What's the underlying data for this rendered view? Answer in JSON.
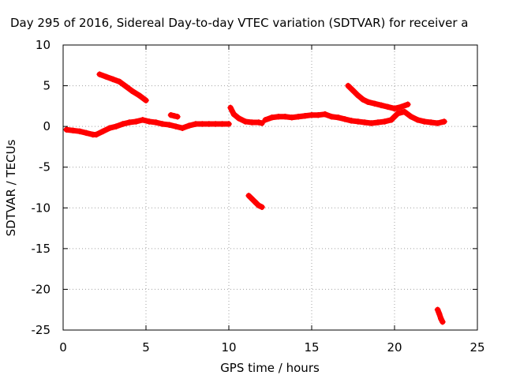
{
  "chart_data": {
    "type": "scatter",
    "title": "Day 295 of 2016, Sidereal Day-to-day VTEC variation (SDTVAR) for receiver a",
    "xlabel": "GPS time / hours",
    "ylabel": "SDTVAR / TECUs",
    "xlim": [
      0,
      25
    ],
    "ylim": [
      -25,
      10
    ],
    "xticks": [
      "0",
      "5",
      "10",
      "15",
      "20",
      "25"
    ],
    "yticks": [
      "10",
      "5",
      "0",
      "-5",
      "-10",
      "-15",
      "-20",
      "-25"
    ],
    "grid": true,
    "marker": "plus",
    "color": "#ff0000",
    "series": [
      {
        "x": [
          0.2,
          0.6,
          1.0,
          1.4,
          1.8,
          2.0,
          2.4,
          2.8,
          3.2,
          3.6,
          4.0,
          4.4,
          4.8,
          5.2,
          5.6,
          6.0,
          6.4,
          6.8,
          7.2,
          7.6,
          8.0,
          8.4,
          8.8,
          9.2,
          9.6,
          10.0
        ],
        "y": [
          -0.4,
          -0.5,
          -0.6,
          -0.8,
          -1.0,
          -1.0,
          -0.6,
          -0.2,
          0.0,
          0.3,
          0.5,
          0.6,
          0.8,
          0.6,
          0.5,
          0.3,
          0.2,
          0.0,
          -0.2,
          0.1,
          0.3,
          0.3,
          0.3,
          0.3,
          0.3,
          0.3
        ]
      },
      {
        "x": [
          2.2,
          2.6,
          3.0,
          3.4,
          3.8,
          4.2,
          4.6,
          5.0
        ],
        "y": [
          6.4,
          6.1,
          5.8,
          5.5,
          4.9,
          4.3,
          3.8,
          3.2
        ]
      },
      {
        "x": [
          6.5,
          6.7,
          6.9
        ],
        "y": [
          1.4,
          1.3,
          1.2
        ]
      },
      {
        "x": [
          10.1,
          10.3,
          10.6,
          11.0,
          11.4,
          11.8,
          12.0
        ],
        "y": [
          2.3,
          1.5,
          1.0,
          0.6,
          0.5,
          0.5,
          0.4
        ]
      },
      {
        "x": [
          11.2,
          11.4,
          11.6,
          11.8,
          12.0
        ],
        "y": [
          -8.5,
          -8.9,
          -9.3,
          -9.7,
          -9.9
        ]
      },
      {
        "x": [
          12.2,
          12.6,
          13.0,
          13.4,
          13.8,
          14.2,
          14.6,
          15.0,
          15.4,
          15.8,
          16.2,
          16.6,
          17.0,
          17.4,
          17.8,
          18.2,
          18.6,
          19.0,
          19.4,
          19.8,
          20.2,
          20.6,
          21.0,
          21.4,
          21.8,
          22.2,
          22.6,
          23.0
        ],
        "y": [
          0.8,
          1.1,
          1.2,
          1.2,
          1.1,
          1.2,
          1.3,
          1.4,
          1.4,
          1.5,
          1.2,
          1.1,
          0.9,
          0.7,
          0.6,
          0.5,
          0.4,
          0.5,
          0.6,
          0.8,
          1.6,
          1.8,
          1.2,
          0.8,
          0.6,
          0.5,
          0.4,
          0.6
        ]
      },
      {
        "x": [
          17.2,
          17.5,
          17.8,
          18.1,
          18.4,
          18.8,
          19.2,
          19.6,
          20.0,
          20.4,
          20.8
        ],
        "y": [
          5.0,
          4.4,
          3.8,
          3.3,
          3.0,
          2.8,
          2.6,
          2.4,
          2.2,
          2.4,
          2.7
        ]
      },
      {
        "x": [
          22.6,
          22.7,
          22.8,
          22.9
        ],
        "y": [
          -22.5,
          -23.0,
          -23.6,
          -24.0
        ]
      }
    ]
  }
}
